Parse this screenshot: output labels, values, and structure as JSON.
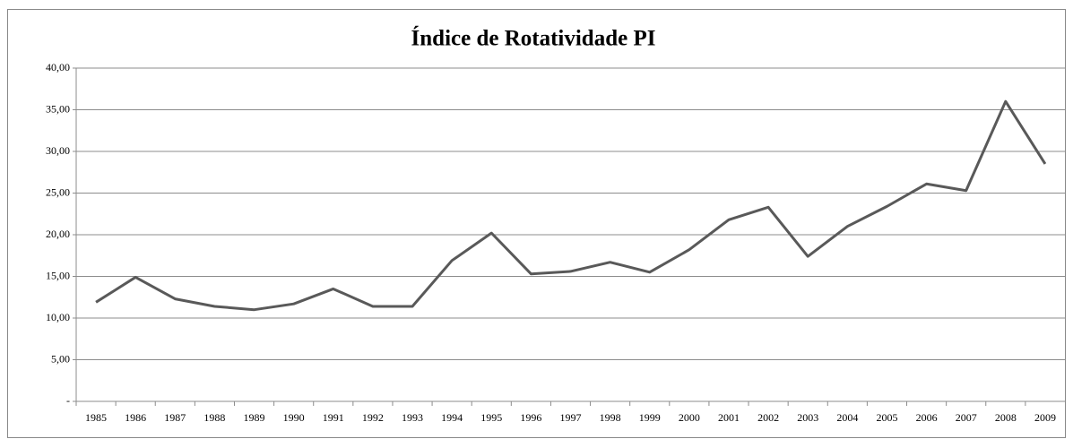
{
  "chart_data": {
    "type": "line",
    "title": "Índice de Rotatividade PI",
    "categories": [
      "1985",
      "1986",
      "1987",
      "1988",
      "1989",
      "1990",
      "1991",
      "1992",
      "1993",
      "1994",
      "1995",
      "1996",
      "1997",
      "1998",
      "1999",
      "2000",
      "2001",
      "2002",
      "2003",
      "2004",
      "2005",
      "2006",
      "2007",
      "2008",
      "2009"
    ],
    "series": [
      {
        "name": "Índice de Rotatividade PI",
        "color": "#595959",
        "values": [
          11.9,
          14.9,
          12.3,
          11.4,
          11.0,
          11.7,
          13.5,
          11.4,
          11.4,
          16.9,
          20.2,
          15.3,
          15.6,
          16.7,
          15.5,
          18.2,
          21.8,
          23.3,
          17.4,
          21.0,
          23.4,
          26.1,
          25.3,
          36.0,
          28.5
        ]
      }
    ],
    "ylim": [
      0,
      40
    ],
    "yticks": [
      {
        "value": 0,
        "label": "-"
      },
      {
        "value": 5,
        "label": "5,00"
      },
      {
        "value": 10,
        "label": "10,00"
      },
      {
        "value": 15,
        "label": "15,00"
      },
      {
        "value": 20,
        "label": "20,00"
      },
      {
        "value": 25,
        "label": "25,00"
      },
      {
        "value": 30,
        "label": "30,00"
      },
      {
        "value": 35,
        "label": "35,00"
      },
      {
        "value": 40,
        "label": "40,00"
      }
    ],
    "grid": true
  }
}
